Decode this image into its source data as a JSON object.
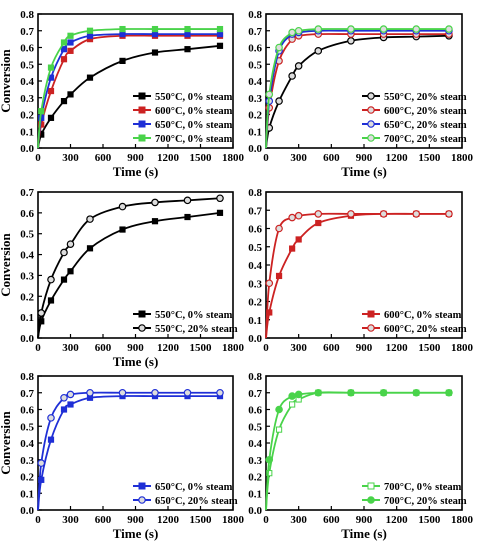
{
  "chart_data": [
    {
      "type": "line",
      "xlabel": "Time (s)",
      "ylabel": "Conversion",
      "xlim": [
        0,
        1800
      ],
      "ylim": [
        0,
        0.8
      ],
      "xticks": [
        "0",
        "300",
        "600",
        "900",
        "1200",
        "1500",
        "1800"
      ],
      "yticks": [
        "0.0",
        "0.1",
        "0.2",
        "0.3",
        "0.4",
        "0.5",
        "0.6",
        "0.7",
        "0.8"
      ],
      "legend_position": "bottom-right",
      "series": [
        {
          "name": "550°C, 0% steam",
          "color": "#000000",
          "marker": "square",
          "filled": true,
          "x": [
            0,
            30,
            120,
            240,
            300,
            480,
            780,
            1080,
            1380,
            1680
          ],
          "y": [
            0,
            0.08,
            0.18,
            0.28,
            0.32,
            0.42,
            0.52,
            0.57,
            0.59,
            0.61
          ]
        },
        {
          "name": "600°C, 0% steam",
          "color": "#cc2222",
          "marker": "square",
          "filled": true,
          "x": [
            0,
            30,
            120,
            240,
            300,
            480,
            780,
            1080,
            1380,
            1680
          ],
          "y": [
            0,
            0.14,
            0.34,
            0.53,
            0.58,
            0.65,
            0.67,
            0.67,
            0.67,
            0.67
          ]
        },
        {
          "name": "650°C, 0% steam",
          "color": "#1f2fd6",
          "marker": "square",
          "filled": true,
          "x": [
            0,
            30,
            120,
            240,
            300,
            480,
            780,
            1080,
            1380,
            1680
          ],
          "y": [
            0,
            0.18,
            0.42,
            0.59,
            0.63,
            0.67,
            0.68,
            0.68,
            0.68,
            0.68
          ]
        },
        {
          "name": "700°C, 0% steam",
          "color": "#49d34a",
          "marker": "square",
          "filled": true,
          "x": [
            0,
            30,
            120,
            240,
            300,
            480,
            780,
            1080,
            1380,
            1680
          ],
          "y": [
            0,
            0.22,
            0.48,
            0.63,
            0.67,
            0.7,
            0.71,
            0.71,
            0.71,
            0.71
          ]
        }
      ]
    },
    {
      "type": "line",
      "xlabel": "Time (s)",
      "ylabel": "",
      "xlim": [
        0,
        1800
      ],
      "ylim": [
        0,
        0.8
      ],
      "xticks": [
        "0",
        "300",
        "600",
        "900",
        "1200",
        "1500",
        "1800"
      ],
      "yticks": [
        "0.0",
        "0.1",
        "0.2",
        "0.3",
        "0.4",
        "0.5",
        "0.6",
        "0.7",
        "0.8"
      ],
      "legend_position": "bottom-right",
      "series": [
        {
          "name": "550°C, 20% steam",
          "color": "#000000",
          "marker": "circle",
          "filled": false,
          "x": [
            0,
            30,
            120,
            240,
            300,
            480,
            780,
            1080,
            1380,
            1680
          ],
          "y": [
            0,
            0.12,
            0.28,
            0.43,
            0.49,
            0.58,
            0.64,
            0.66,
            0.665,
            0.67
          ]
        },
        {
          "name": "600°C, 20% steam",
          "color": "#cc2222",
          "marker": "circle",
          "filled": false,
          "x": [
            0,
            30,
            120,
            240,
            300,
            480,
            780,
            1080,
            1380,
            1680
          ],
          "y": [
            0,
            0.24,
            0.52,
            0.65,
            0.67,
            0.68,
            0.68,
            0.68,
            0.68,
            0.68
          ]
        },
        {
          "name": "650°C, 20% steam",
          "color": "#1f2fd6",
          "marker": "circle",
          "filled": false,
          "x": [
            0,
            30,
            120,
            240,
            300,
            480,
            780,
            1080,
            1380,
            1680
          ],
          "y": [
            0,
            0.28,
            0.58,
            0.68,
            0.69,
            0.7,
            0.7,
            0.7,
            0.7,
            0.7
          ]
        },
        {
          "name": "700°C, 20% steam",
          "color": "#49d34a",
          "marker": "circle",
          "filled": false,
          "x": [
            0,
            30,
            120,
            240,
            300,
            480,
            780,
            1080,
            1380,
            1680
          ],
          "y": [
            0,
            0.32,
            0.6,
            0.69,
            0.7,
            0.71,
            0.71,
            0.71,
            0.71,
            0.71
          ]
        }
      ]
    },
    {
      "type": "line",
      "xlabel": "Time (s)",
      "ylabel": "Conversion",
      "xlim": [
        0,
        1800
      ],
      "ylim": [
        0,
        0.7
      ],
      "xticks": [
        "0",
        "300",
        "600",
        "900",
        "1200",
        "1500",
        "1800"
      ],
      "yticks": [
        "0.0",
        "0.1",
        "0.2",
        "0.3",
        "0.4",
        "0.5",
        "0.6",
        "0.7"
      ],
      "legend_position": "bottom-right",
      "series": [
        {
          "name": "550°C, 0% steam",
          "color": "#000000",
          "marker": "square",
          "filled": true,
          "x": [
            0,
            30,
            120,
            240,
            300,
            480,
            780,
            1080,
            1380,
            1680
          ],
          "y": [
            0,
            0.08,
            0.18,
            0.28,
            0.32,
            0.43,
            0.52,
            0.56,
            0.58,
            0.6
          ]
        },
        {
          "name": "550°C, 20% steam",
          "color": "#000000",
          "marker": "circle",
          "filled": false,
          "x": [
            0,
            30,
            120,
            240,
            300,
            480,
            780,
            1080,
            1380,
            1680
          ],
          "y": [
            0,
            0.12,
            0.28,
            0.41,
            0.45,
            0.57,
            0.63,
            0.65,
            0.66,
            0.67
          ]
        }
      ]
    },
    {
      "type": "line",
      "xlabel": "",
      "ylabel": "",
      "xlim": [
        0,
        1800
      ],
      "ylim": [
        0,
        0.8
      ],
      "xticks": [
        "0",
        "300",
        "600",
        "900",
        "1200",
        "1500",
        "1800"
      ],
      "yticks": [
        "0.0",
        "0.1",
        "0.2",
        "0.3",
        "0.4",
        "0.5",
        "0.6",
        "0.7",
        "0.8"
      ],
      "legend_position": "bottom-right",
      "series": [
        {
          "name": "600°C, 0% steam",
          "color": "#cc2222",
          "marker": "square",
          "filled": true,
          "x": [
            0,
            30,
            120,
            240,
            300,
            480,
            780,
            1080,
            1380,
            1680
          ],
          "y": [
            0,
            0.14,
            0.34,
            0.49,
            0.54,
            0.63,
            0.67,
            0.68,
            0.68,
            0.68
          ]
        },
        {
          "name": "600°C, 20% steam",
          "color": "#cc2222",
          "marker": "circle",
          "filled": false,
          "x": [
            0,
            30,
            120,
            240,
            300,
            480,
            780,
            1080,
            1380,
            1680
          ],
          "y": [
            0,
            0.3,
            0.6,
            0.66,
            0.67,
            0.68,
            0.68,
            0.68,
            0.68,
            0.68
          ]
        }
      ]
    },
    {
      "type": "line",
      "xlabel": "Time (s)",
      "ylabel": "Conversion",
      "xlim": [
        0,
        1800
      ],
      "ylim": [
        0,
        0.8
      ],
      "xticks": [
        "0",
        "300",
        "600",
        "900",
        "1200",
        "1500",
        "1800"
      ],
      "yticks": [
        "0.0",
        "0.1",
        "0.2",
        "0.3",
        "0.4",
        "0.5",
        "0.6",
        "0.7",
        "0.8"
      ],
      "legend_position": "bottom-right",
      "series": [
        {
          "name": "650°C, 0% steam",
          "color": "#1f2fd6",
          "marker": "square",
          "filled": true,
          "x": [
            0,
            30,
            120,
            240,
            300,
            480,
            780,
            1080,
            1380,
            1680
          ],
          "y": [
            0,
            0.18,
            0.42,
            0.6,
            0.63,
            0.67,
            0.68,
            0.68,
            0.68,
            0.68
          ]
        },
        {
          "name": "650°C, 20% steam",
          "color": "#1f2fd6",
          "marker": "circle",
          "filled": false,
          "x": [
            0,
            30,
            120,
            240,
            300,
            480,
            780,
            1080,
            1380,
            1680
          ],
          "y": [
            0,
            0.28,
            0.55,
            0.67,
            0.69,
            0.7,
            0.7,
            0.7,
            0.7,
            0.7
          ]
        }
      ]
    },
    {
      "type": "line",
      "xlabel": "Time (s)",
      "ylabel": "",
      "xlim": [
        0,
        1800
      ],
      "ylim": [
        0,
        0.8
      ],
      "xticks": [
        "0",
        "300",
        "600",
        "900",
        "1200",
        "1500",
        "1800"
      ],
      "yticks": [
        "0.0",
        "0.1",
        "0.2",
        "0.3",
        "0.4",
        "0.5",
        "0.6",
        "0.7",
        "0.8"
      ],
      "legend_position": "bottom-right",
      "series": [
        {
          "name": "700°C, 0% steam",
          "color": "#49d34a",
          "marker": "square",
          "filled": false,
          "x": [
            0,
            30,
            120,
            240,
            300,
            480,
            780,
            1080,
            1380,
            1680
          ],
          "y": [
            0,
            0.22,
            0.48,
            0.63,
            0.66,
            0.7,
            0.7,
            0.7,
            0.7,
            0.7
          ]
        },
        {
          "name": "700°C, 20% steam",
          "color": "#49d34a",
          "marker": "circle",
          "filled": true,
          "x": [
            0,
            30,
            120,
            240,
            300,
            480,
            780,
            1080,
            1380,
            1680
          ],
          "y": [
            0,
            0.3,
            0.6,
            0.68,
            0.69,
            0.7,
            0.7,
            0.7,
            0.7,
            0.7
          ]
        }
      ]
    }
  ]
}
